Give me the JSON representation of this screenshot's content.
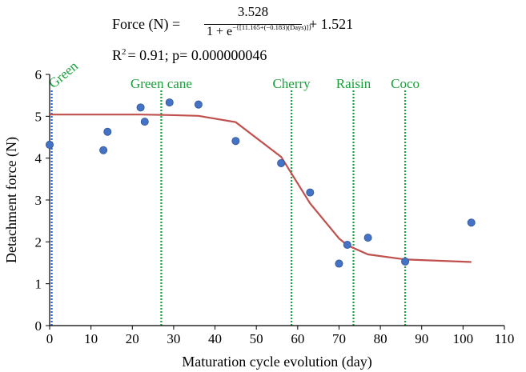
{
  "equation": {
    "lhs": "Force (N) =",
    "numerator": "3.528",
    "denominator_base": "1 + e",
    "denominator_exponent": "−{[11.165+(−0.183)(Days)]}",
    "tail": "+ 1.521",
    "r2_prefix": "R",
    "r2_sup": "2",
    "r2_rest": "= 0.91; p= 0.000000046"
  },
  "chart_data": {
    "type": "scatter",
    "xlabel": "Maturation cycle evolution (day)",
    "ylabel": "Detachment force (N)",
    "xlim": [
      0,
      110
    ],
    "ylim": [
      0,
      6
    ],
    "x_ticks": [
      0,
      10,
      20,
      30,
      40,
      50,
      60,
      70,
      80,
      90,
      100,
      110
    ],
    "y_ticks": [
      0,
      1,
      2,
      3,
      4,
      5,
      6
    ],
    "grid": false,
    "legend": "none",
    "series": [
      {
        "kind": "points",
        "color": "#4472c4",
        "points": [
          {
            "x": 0,
            "y": 4.32
          },
          {
            "x": 13,
            "y": 4.19
          },
          {
            "x": 14,
            "y": 4.63
          },
          {
            "x": 22,
            "y": 5.21
          },
          {
            "x": 23,
            "y": 4.87
          },
          {
            "x": 29,
            "y": 5.33
          },
          {
            "x": 36,
            "y": 5.28
          },
          {
            "x": 45,
            "y": 4.41
          },
          {
            "x": 56,
            "y": 3.88
          },
          {
            "x": 63,
            "y": 3.18
          },
          {
            "x": 70,
            "y": 1.48
          },
          {
            "x": 72,
            "y": 1.93
          },
          {
            "x": 77,
            "y": 2.1
          },
          {
            "x": 86,
            "y": 1.53
          },
          {
            "x": 102,
            "y": 2.46
          }
        ]
      },
      {
        "kind": "fit",
        "color": "#c0504d",
        "points": [
          {
            "x": 0,
            "y": 5.04
          },
          {
            "x": 13,
            "y": 5.04
          },
          {
            "x": 22,
            "y": 5.04
          },
          {
            "x": 29,
            "y": 5.03
          },
          {
            "x": 36,
            "y": 5.01
          },
          {
            "x": 45,
            "y": 4.86
          },
          {
            "x": 56,
            "y": 4.03
          },
          {
            "x": 63,
            "y": 2.92
          },
          {
            "x": 70,
            "y": 2.08
          },
          {
            "x": 72,
            "y": 1.92
          },
          {
            "x": 77,
            "y": 1.7
          },
          {
            "x": 86,
            "y": 1.58
          },
          {
            "x": 102,
            "y": 1.52
          }
        ]
      }
    ],
    "stages": [
      {
        "label": "Green",
        "x": 0.5,
        "color": "#1f5fd0",
        "rotated": true
      },
      {
        "label": "Green cane",
        "x": 27,
        "color": "#1aa03a",
        "rotated": false
      },
      {
        "label": "Cherry",
        "x": 58.5,
        "color": "#1aa03a",
        "rotated": false
      },
      {
        "label": "Raisin",
        "x": 73.5,
        "color": "#1aa03a",
        "rotated": false
      },
      {
        "label": "Coco",
        "x": 86,
        "color": "#1aa03a",
        "rotated": false
      }
    ]
  }
}
